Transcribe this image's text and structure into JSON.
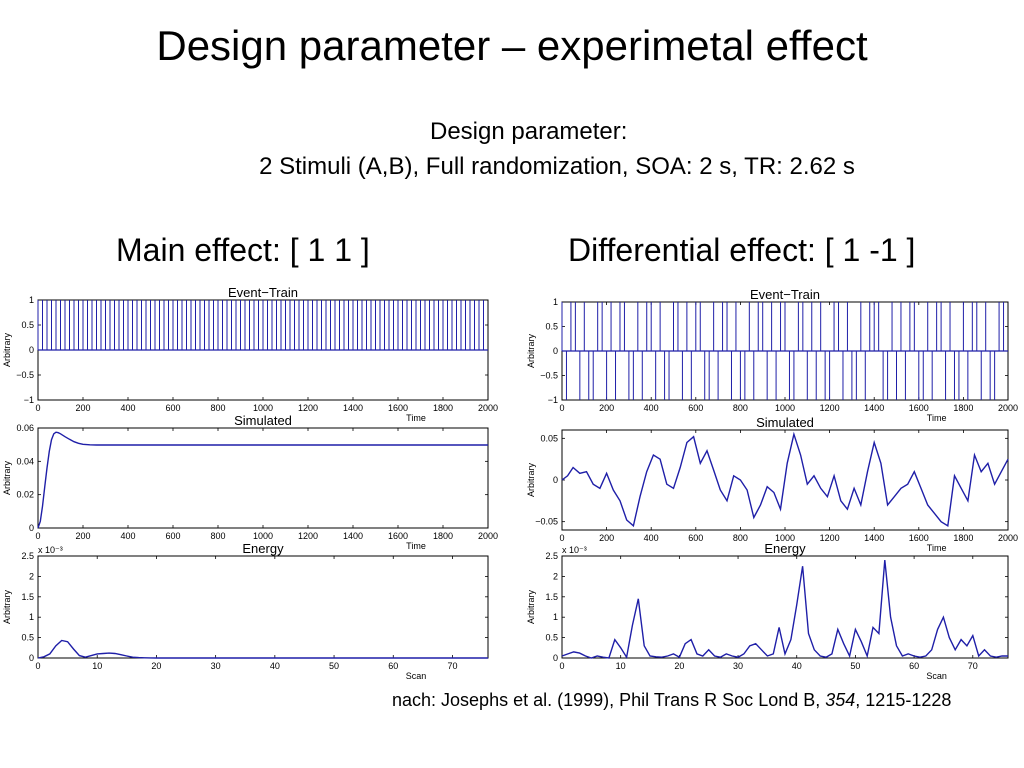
{
  "slide": {
    "title": "Design parameter – experimetal effect",
    "design_label": "Design parameter:",
    "design_detail": "2 Stimuli (A,B), Full randomization, SOA: 2 s, TR: 2.62 s",
    "main_effect_label": "Main effect: [ 1 1 ]",
    "differential_effect_label": "Differential effect: [ 1 -1 ]",
    "citation_prefix": "nach: Josephs et al. (1999), Phil Trans R Soc Lond B, ",
    "citation_volume": "354",
    "citation_suffix": ", 1215-1228"
  },
  "line_color": "#1f1fa8",
  "chart_data": [
    {
      "id": "main-event",
      "type": "line",
      "title": "Event−Train",
      "xlabel": "Time",
      "ylabel": "Arbitrary",
      "xlim": [
        0,
        2000
      ],
      "ylim": [
        -1,
        1
      ],
      "xticks": [
        0,
        200,
        400,
        600,
        800,
        1000,
        1200,
        1400,
        1600,
        1800,
        2000
      ],
      "yticks": [
        -1,
        -0.5,
        0,
        0.5,
        1
      ],
      "ytick_labels": [
        "−1",
        "−0.5",
        "0",
        "0.5",
        "1"
      ],
      "exponent": "",
      "series": [
        {
          "kind": "impulse",
          "x": [
            0,
            20,
            40,
            60,
            80,
            100,
            120,
            140,
            160,
            180,
            200,
            220,
            240,
            260,
            280,
            300,
            320,
            340,
            360,
            380,
            400,
            420,
            440,
            460,
            480,
            500,
            520,
            540,
            560,
            580,
            600,
            620,
            640,
            660,
            680,
            700,
            720,
            740,
            760,
            780,
            800,
            820,
            840,
            860,
            880,
            900,
            920,
            940,
            960,
            980,
            1000,
            1020,
            1040,
            1060,
            1080,
            1100,
            1120,
            1140,
            1160,
            1180,
            1200,
            1220,
            1240,
            1260,
            1280,
            1300,
            1320,
            1340,
            1360,
            1380,
            1400,
            1420,
            1440,
            1460,
            1480,
            1500,
            1520,
            1540,
            1560,
            1580,
            1600,
            1620,
            1640,
            1660,
            1680,
            1700,
            1720,
            1740,
            1760,
            1780,
            1800,
            1820,
            1840,
            1860,
            1880,
            1900,
            1920,
            1940,
            1960,
            1980
          ],
          "y": [
            1,
            1,
            1,
            1,
            1,
            1,
            1,
            1,
            1,
            1,
            1,
            1,
            1,
            1,
            1,
            1,
            1,
            1,
            1,
            1,
            1,
            1,
            1,
            1,
            1,
            1,
            1,
            1,
            1,
            1,
            1,
            1,
            1,
            1,
            1,
            1,
            1,
            1,
            1,
            1,
            1,
            1,
            1,
            1,
            1,
            1,
            1,
            1,
            1,
            1,
            1,
            1,
            1,
            1,
            1,
            1,
            1,
            1,
            1,
            1,
            1,
            1,
            1,
            1,
            1,
            1,
            1,
            1,
            1,
            1,
            1,
            1,
            1,
            1,
            1,
            1,
            1,
            1,
            1,
            1,
            1,
            1,
            1,
            1,
            1,
            1,
            1,
            1,
            1,
            1,
            1,
            1,
            1,
            1,
            1,
            1,
            1,
            1,
            1,
            1
          ]
        }
      ]
    },
    {
      "id": "main-simulated",
      "type": "line",
      "title": "Simulated",
      "xlabel": "Time",
      "ylabel": "Arbitrary",
      "xlim": [
        0,
        2000
      ],
      "ylim": [
        0,
        0.06
      ],
      "xticks": [
        0,
        200,
        400,
        600,
        800,
        1000,
        1200,
        1400,
        1600,
        1800,
        2000
      ],
      "yticks": [
        0,
        0.02,
        0.04,
        0.06
      ],
      "ytick_labels": [
        "0",
        "0.02",
        "0.04",
        "0.06"
      ],
      "exponent": "",
      "series": [
        {
          "kind": "line",
          "x": [
            0,
            10,
            20,
            30,
            40,
            50,
            60,
            70,
            80,
            90,
            100,
            120,
            140,
            160,
            180,
            200,
            230,
            260,
            300,
            400,
            600,
            800,
            1000,
            1200,
            1400,
            1600,
            1800,
            2000
          ],
          "y": [
            0,
            0.004,
            0.013,
            0.025,
            0.036,
            0.046,
            0.053,
            0.0565,
            0.0575,
            0.0572,
            0.0565,
            0.0548,
            0.0532,
            0.0518,
            0.0508,
            0.0502,
            0.0499,
            0.0498,
            0.0498,
            0.0498,
            0.0498,
            0.0498,
            0.0498,
            0.0498,
            0.0498,
            0.0498,
            0.0498,
            0.0498
          ]
        }
      ]
    },
    {
      "id": "main-energy",
      "type": "line",
      "title": "Energy",
      "xlabel": "Scan",
      "ylabel": "Arbitrary",
      "xlim": [
        0,
        76
      ],
      "ylim": [
        0,
        2.5
      ],
      "xticks": [
        0,
        10,
        20,
        30,
        40,
        50,
        60,
        70
      ],
      "yticks": [
        0,
        0.5,
        1,
        1.5,
        2,
        2.5
      ],
      "ytick_labels": [
        "0",
        "0.5",
        "1",
        "1.5",
        "2",
        "2.5"
      ],
      "exponent": "x 10⁻³",
      "series": [
        {
          "kind": "line",
          "x": [
            0,
            1,
            2,
            3,
            4,
            5,
            6,
            7,
            8,
            9,
            10,
            11,
            12,
            13,
            14,
            15,
            16,
            17,
            18,
            19,
            20,
            25,
            30,
            40,
            50,
            60,
            70,
            76
          ],
          "y": [
            0,
            0.03,
            0.1,
            0.3,
            0.43,
            0.4,
            0.22,
            0.06,
            0.02,
            0.06,
            0.1,
            0.11,
            0.12,
            0.11,
            0.08,
            0.05,
            0.02,
            0.01,
            0.005,
            0.002,
            0,
            0,
            0,
            0,
            0,
            0,
            0,
            0
          ]
        }
      ]
    },
    {
      "id": "diff-event",
      "type": "line",
      "title": "Event−Train",
      "xlabel": "Time",
      "ylabel": "Arbitrary",
      "xlim": [
        0,
        2000
      ],
      "ylim": [
        -1,
        1
      ],
      "xticks": [
        0,
        200,
        400,
        600,
        800,
        1000,
        1200,
        1400,
        1600,
        1800,
        2000
      ],
      "yticks": [
        -1,
        -0.5,
        0,
        0.5,
        1
      ],
      "ytick_labels": [
        "−1",
        "−0.5",
        "0",
        "0.5",
        "1"
      ],
      "exponent": "",
      "series": [
        {
          "kind": "impulse",
          "x": [
            0,
            20,
            40,
            60,
            80,
            100,
            120,
            140,
            160,
            180,
            200,
            220,
            240,
            260,
            280,
            300,
            320,
            340,
            360,
            380,
            400,
            420,
            440,
            460,
            480,
            500,
            520,
            540,
            560,
            580,
            600,
            620,
            640,
            660,
            680,
            700,
            720,
            740,
            760,
            780,
            800,
            820,
            840,
            860,
            880,
            900,
            920,
            940,
            960,
            980,
            1000,
            1020,
            1040,
            1060,
            1080,
            1100,
            1120,
            1140,
            1160,
            1180,
            1200,
            1220,
            1240,
            1260,
            1280,
            1300,
            1320,
            1340,
            1360,
            1380,
            1400,
            1420,
            1440,
            1460,
            1480,
            1500,
            1520,
            1540,
            1560,
            1580,
            1600,
            1620,
            1640,
            1660,
            1680,
            1700,
            1720,
            1740,
            1760,
            1780,
            1800,
            1820,
            1840,
            1860,
            1880,
            1900,
            1920,
            1940,
            1960,
            1980
          ],
          "y": [
            1,
            -1,
            1,
            1,
            -1,
            1,
            -1,
            -1,
            1,
            1,
            -1,
            1,
            -1,
            1,
            1,
            -1,
            -1,
            1,
            -1,
            1,
            1,
            -1,
            1,
            -1,
            -1,
            1,
            1,
            -1,
            1,
            -1,
            1,
            1,
            -1,
            -1,
            1,
            -1,
            1,
            1,
            -1,
            1,
            -1,
            -1,
            1,
            -1,
            1,
            1,
            -1,
            1,
            -1,
            1,
            1,
            -1,
            -1,
            1,
            1,
            -1,
            1,
            -1,
            1,
            -1,
            -1,
            1,
            1,
            -1,
            1,
            -1,
            -1,
            1,
            -1,
            1,
            1,
            1,
            -1,
            -1,
            1,
            -1,
            1,
            -1,
            1,
            1,
            -1,
            -1,
            1,
            -1,
            1,
            1,
            -1,
            1,
            -1,
            -1,
            1,
            -1,
            1,
            1,
            -1,
            1,
            -1,
            -1,
            1,
            1
          ]
        }
      ]
    },
    {
      "id": "diff-simulated",
      "type": "line",
      "title": "Simulated",
      "xlabel": "Time",
      "ylabel": "Arbitrary",
      "xlim": [
        0,
        2000
      ],
      "ylim": [
        -0.06,
        0.06
      ],
      "xticks": [
        0,
        200,
        400,
        600,
        800,
        1000,
        1200,
        1400,
        1600,
        1800,
        2000
      ],
      "yticks": [
        -0.05,
        0,
        0.05
      ],
      "ytick_labels": [
        "−0.05",
        "0",
        "0.05"
      ],
      "exponent": "",
      "series": [
        {
          "kind": "line",
          "x": [
            0,
            25,
            50,
            80,
            110,
            140,
            170,
            200,
            230,
            260,
            290,
            320,
            350,
            380,
            410,
            440,
            470,
            500,
            530,
            560,
            590,
            620,
            650,
            680,
            710,
            740,
            770,
            800,
            830,
            860,
            890,
            920,
            950,
            980,
            1010,
            1040,
            1070,
            1100,
            1130,
            1160,
            1190,
            1220,
            1250,
            1280,
            1310,
            1340,
            1370,
            1400,
            1430,
            1460,
            1490,
            1520,
            1550,
            1580,
            1610,
            1640,
            1670,
            1700,
            1730,
            1760,
            1790,
            1820,
            1850,
            1880,
            1910,
            1940,
            1970,
            2000
          ],
          "y": [
            0,
            0.005,
            0.015,
            0.008,
            0.01,
            -0.005,
            -0.01,
            0.008,
            -0.012,
            -0.025,
            -0.048,
            -0.055,
            -0.02,
            0.01,
            0.03,
            0.025,
            -0.005,
            -0.01,
            0.015,
            0.045,
            0.052,
            0.02,
            0.035,
            0.012,
            -0.012,
            -0.025,
            0.005,
            0,
            -0.012,
            -0.045,
            -0.03,
            -0.008,
            -0.015,
            -0.035,
            0.02,
            0.055,
            0.03,
            -0.005,
            0.005,
            -0.01,
            -0.02,
            0.005,
            -0.025,
            -0.035,
            -0.01,
            -0.03,
            0.01,
            0.045,
            0.02,
            -0.03,
            -0.02,
            -0.01,
            -0.005,
            0.01,
            -0.01,
            -0.03,
            -0.04,
            -0.05,
            -0.055,
            0.005,
            -0.01,
            -0.025,
            0.03,
            0.01,
            0.02,
            -0.005,
            0.01,
            0.025
          ]
        }
      ]
    },
    {
      "id": "diff-energy",
      "type": "line",
      "title": "Energy",
      "xlabel": "Scan",
      "ylabel": "Arbitrary",
      "xlim": [
        0,
        76
      ],
      "ylim": [
        0,
        2.5
      ],
      "xticks": [
        0,
        10,
        20,
        30,
        40,
        50,
        60,
        70
      ],
      "yticks": [
        0,
        0.5,
        1,
        1.5,
        2,
        2.5
      ],
      "ytick_labels": [
        "0",
        "0.5",
        "1",
        "1.5",
        "2",
        "2.5"
      ],
      "exponent": "x 10⁻³",
      "series": [
        {
          "kind": "line",
          "x": [
            0,
            1,
            2,
            3,
            4,
            5,
            6,
            7,
            8,
            9,
            10,
            11,
            12,
            13,
            14,
            15,
            16,
            17,
            18,
            19,
            20,
            21,
            22,
            23,
            24,
            25,
            26,
            27,
            28,
            29,
            30,
            31,
            32,
            33,
            34,
            35,
            36,
            37,
            38,
            39,
            40,
            41,
            42,
            43,
            44,
            45,
            46,
            47,
            48,
            49,
            50,
            51,
            52,
            53,
            54,
            55,
            56,
            57,
            58,
            59,
            60,
            61,
            62,
            63,
            64,
            65,
            66,
            67,
            68,
            69,
            70,
            71,
            72,
            73,
            74,
            75,
            76
          ],
          "y": [
            0.05,
            0.1,
            0.15,
            0.12,
            0.05,
            0,
            0.05,
            0.02,
            0,
            0.45,
            0.25,
            0.02,
            0.8,
            1.45,
            0.3,
            0.05,
            0.03,
            0.02,
            0.05,
            0.1,
            0.02,
            0.35,
            0.45,
            0.1,
            0.05,
            0.2,
            0.05,
            0.02,
            0.1,
            0.05,
            0.02,
            0.1,
            0.3,
            0.35,
            0.2,
            0.05,
            0.1,
            0.75,
            0.1,
            0.45,
            1.3,
            2.25,
            0.6,
            0.2,
            0.05,
            0.02,
            0.1,
            0.7,
            0.35,
            0.05,
            0.7,
            0.4,
            0.05,
            0.75,
            0.6,
            2.4,
            1.0,
            0.3,
            0.05,
            0.1,
            0.05,
            0.02,
            0.05,
            0.2,
            0.7,
            1.0,
            0.5,
            0.2,
            0.45,
            0.3,
            0.55,
            0.05,
            0.2,
            0.05,
            0.02,
            0.05,
            0.05
          ]
        }
      ]
    }
  ]
}
